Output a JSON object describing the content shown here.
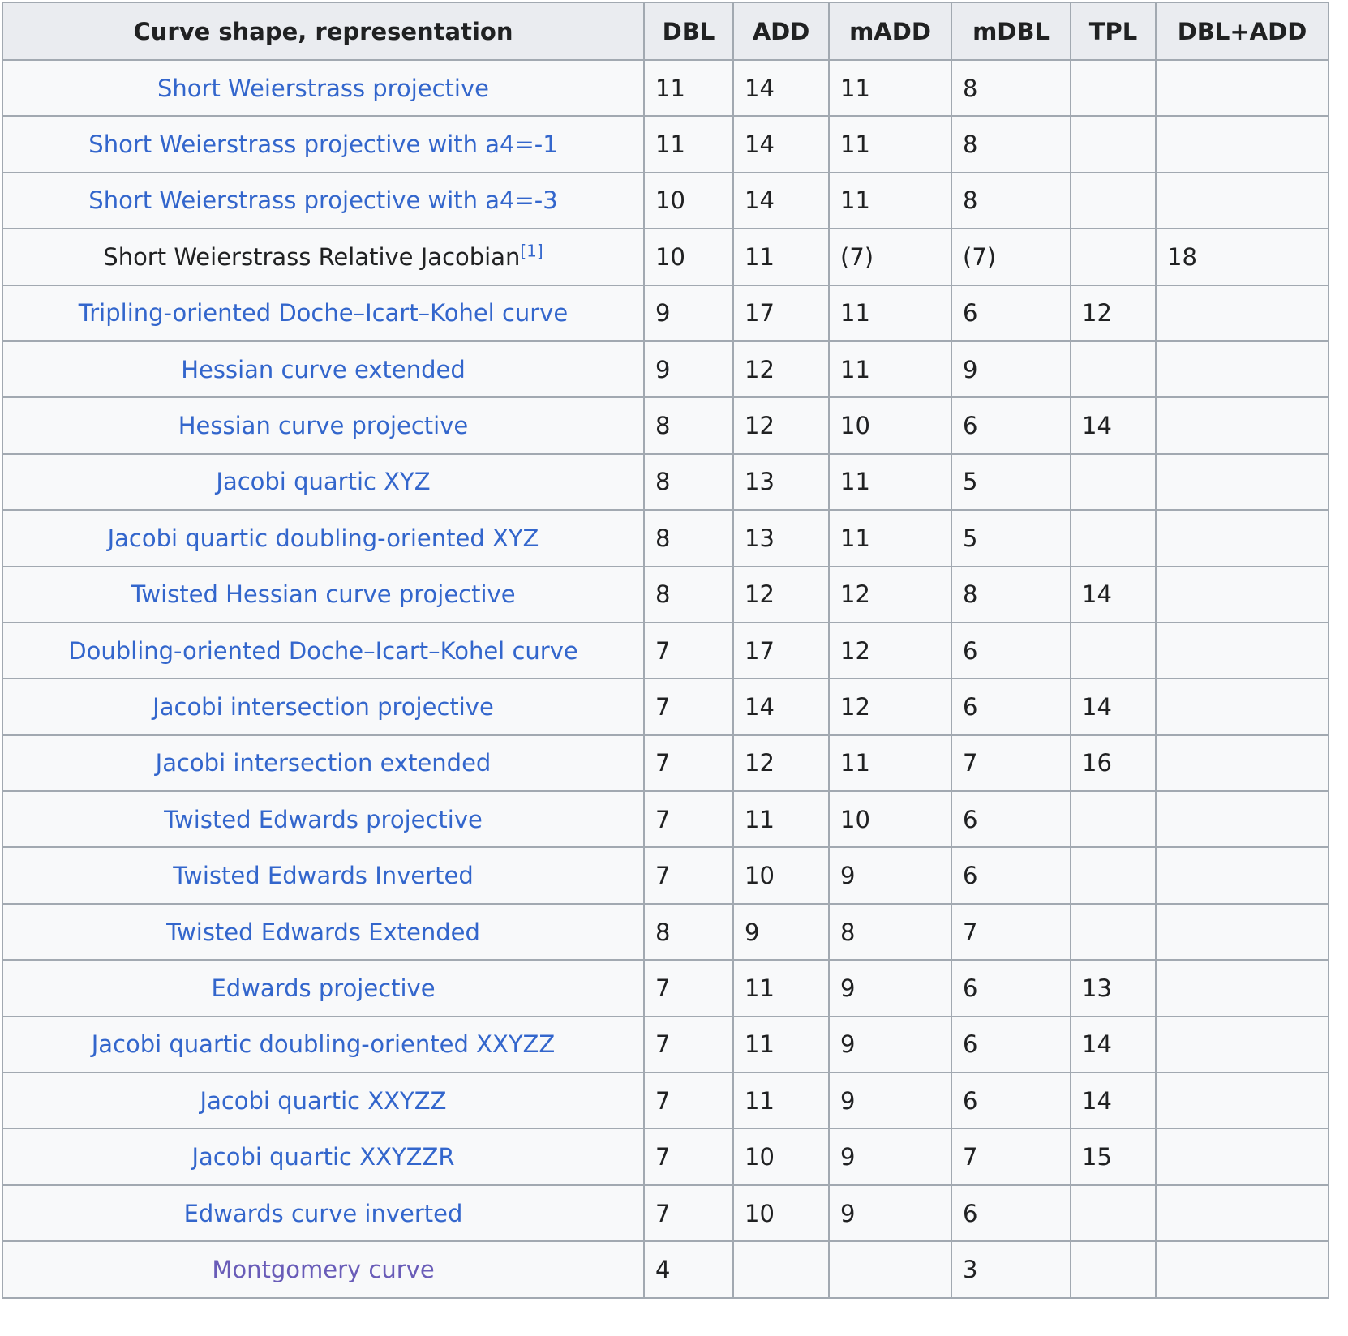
{
  "colors": {
    "link": "#3366cc",
    "visited_link": "#695cb8",
    "header_bg": "#eaecf0",
    "row_bg": "#f8f9fa",
    "border": "#a2a9b1",
    "text": "#202122"
  },
  "table": {
    "headers": [
      "Curve shape, representation",
      "DBL",
      "ADD",
      "mADD",
      "mDBL",
      "TPL",
      "DBL+ADD"
    ],
    "rows": [
      {
        "label": "Short Weierstrass projective",
        "label_type": "link",
        "values": [
          "11",
          "14",
          "11",
          "8",
          "",
          ""
        ]
      },
      {
        "label": "Short Weierstrass projective with a4=-1",
        "label_type": "link",
        "values": [
          "11",
          "14",
          "11",
          "8",
          "",
          ""
        ]
      },
      {
        "label": "Short Weierstrass projective with a4=-3",
        "label_type": "link",
        "values": [
          "10",
          "14",
          "11",
          "8",
          "",
          ""
        ]
      },
      {
        "label": "Short Weierstrass Relative Jacobian",
        "label_type": "text",
        "ref": "[1]",
        "values": [
          "10",
          "11",
          "(7)",
          "(7)",
          "",
          "18"
        ]
      },
      {
        "label": "Tripling-oriented Doche–Icart–Kohel curve",
        "label_type": "link",
        "values": [
          "9",
          "17",
          "11",
          "6",
          "12",
          ""
        ]
      },
      {
        "label": "Hessian curve extended",
        "label_type": "link",
        "values": [
          "9",
          "12",
          "11",
          "9",
          "",
          ""
        ]
      },
      {
        "label": "Hessian curve projective",
        "label_type": "link",
        "values": [
          "8",
          "12",
          "10",
          "6",
          "14",
          ""
        ]
      },
      {
        "label": "Jacobi quartic XYZ",
        "label_type": "link",
        "values": [
          "8",
          "13",
          "11",
          "5",
          "",
          ""
        ]
      },
      {
        "label": "Jacobi quartic doubling-oriented XYZ",
        "label_type": "link",
        "values": [
          "8",
          "13",
          "11",
          "5",
          "",
          ""
        ]
      },
      {
        "label": "Twisted Hessian curve projective",
        "label_type": "link",
        "values": [
          "8",
          "12",
          "12",
          "8",
          "14",
          ""
        ]
      },
      {
        "label": "Doubling-oriented Doche–Icart–Kohel curve",
        "label_type": "link",
        "values": [
          "7",
          "17",
          "12",
          "6",
          "",
          ""
        ]
      },
      {
        "label": "Jacobi intersection projective",
        "label_type": "link",
        "values": [
          "7",
          "14",
          "12",
          "6",
          "14",
          ""
        ]
      },
      {
        "label": "Jacobi intersection extended",
        "label_type": "link",
        "values": [
          "7",
          "12",
          "11",
          "7",
          "16",
          ""
        ]
      },
      {
        "label": "Twisted Edwards projective",
        "label_type": "link",
        "values": [
          "7",
          "11",
          "10",
          "6",
          "",
          ""
        ]
      },
      {
        "label": "Twisted Edwards Inverted",
        "label_type": "link",
        "values": [
          "7",
          "10",
          "9",
          "6",
          "",
          ""
        ]
      },
      {
        "label": "Twisted Edwards Extended",
        "label_type": "link",
        "values": [
          "8",
          "9",
          "8",
          "7",
          "",
          ""
        ]
      },
      {
        "label": "Edwards projective",
        "label_type": "link",
        "values": [
          "7",
          "11",
          "9",
          "6",
          "13",
          ""
        ]
      },
      {
        "label": "Jacobi quartic doubling-oriented XXYZZ",
        "label_type": "link",
        "values": [
          "7",
          "11",
          "9",
          "6",
          "14",
          ""
        ]
      },
      {
        "label": "Jacobi quartic XXYZZ",
        "label_type": "link",
        "values": [
          "7",
          "11",
          "9",
          "6",
          "14",
          ""
        ]
      },
      {
        "label": "Jacobi quartic XXYZZR",
        "label_type": "link",
        "values": [
          "7",
          "10",
          "9",
          "7",
          "15",
          ""
        ]
      },
      {
        "label": "Edwards curve inverted",
        "label_type": "link",
        "values": [
          "7",
          "10",
          "9",
          "6",
          "",
          ""
        ]
      },
      {
        "label": "Montgomery curve",
        "label_type": "visited",
        "values": [
          "4",
          "",
          "",
          "3",
          "",
          ""
        ]
      }
    ]
  }
}
